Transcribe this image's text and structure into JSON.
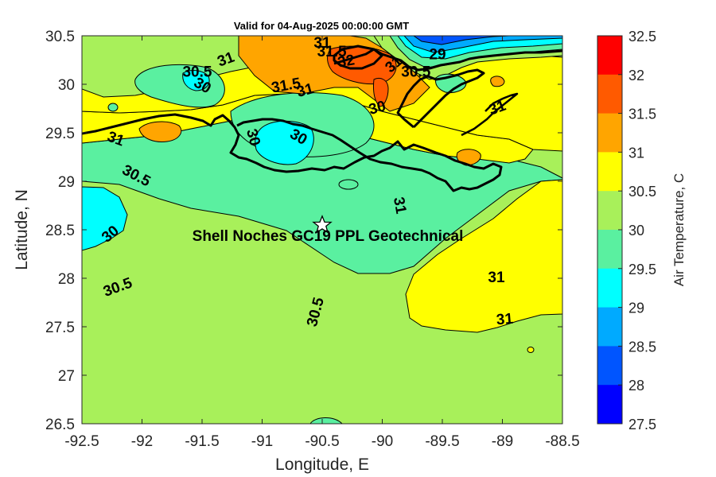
{
  "title": "Valid for 04-Aug-2025 00:00:00 GMT",
  "xlabel": "Longitude, E",
  "ylabel": "Latitude, N",
  "xlim": [
    -92.5,
    -88.5
  ],
  "ylim": [
    26.5,
    30.5
  ],
  "xticks": [
    "-92.5",
    "-92",
    "-91.5",
    "-91",
    "-90.5",
    "-90",
    "-89.5",
    "-89",
    "-88.5"
  ],
  "yticks": [
    "30.5",
    "30",
    "29.5",
    "29",
    "28.5",
    "28",
    "27.5",
    "27",
    "26.5"
  ],
  "site": {
    "label": "Shell Noches   GC19 PPL  Geotechnical",
    "lon": -90.5,
    "lat": 28.55,
    "marker": "star-icon"
  },
  "colorbar": {
    "label": "Air Temperature, C",
    "levels": [
      "32.5",
      "32",
      "31.5",
      "31",
      "30.5",
      "30",
      "29.5",
      "29",
      "28.5",
      "28",
      "27.5"
    ],
    "colors": [
      "#ff0000",
      "#ff5a00",
      "#ffa500",
      "#ffff00",
      "#a8f05a",
      "#5af0a0",
      "#00ffff",
      "#00aaff",
      "#0055ff",
      "#0000ff",
      "#0000aa"
    ]
  },
  "contour_labels": [
    {
      "text": "30.5",
      "lon": -92.05,
      "lat": 29.05,
      "angle": 28
    },
    {
      "text": "31",
      "lon": -92.22,
      "lat": 29.43,
      "angle": 20
    },
    {
      "text": "30",
      "lon": -92.26,
      "lat": 28.45,
      "angle": -40
    },
    {
      "text": "30.5",
      "lon": -92.2,
      "lat": 27.9,
      "angle": -20
    },
    {
      "text": "30.5",
      "lon": -90.55,
      "lat": 27.65,
      "angle": -75
    },
    {
      "text": "31",
      "lon": -89.86,
      "lat": 28.75,
      "angle": 80
    },
    {
      "text": "31",
      "lon": -89.05,
      "lat": 28.0,
      "angle": 0
    },
    {
      "text": "31",
      "lon": -88.98,
      "lat": 27.57,
      "angle": -5
    },
    {
      "text": "31",
      "lon": -89.04,
      "lat": 29.75,
      "angle": -20
    },
    {
      "text": "30",
      "lon": -90.04,
      "lat": 29.75,
      "angle": -15
    },
    {
      "text": "30",
      "lon": -90.7,
      "lat": 29.45,
      "angle": 30
    },
    {
      "text": "30",
      "lon": -91.08,
      "lat": 29.45,
      "angle": 75
    },
    {
      "text": "30.5",
      "lon": -91.54,
      "lat": 30.12,
      "angle": 0
    },
    {
      "text": "30",
      "lon": -91.5,
      "lat": 29.98,
      "angle": 30
    },
    {
      "text": "31",
      "lon": -91.3,
      "lat": 30.25,
      "angle": -20
    },
    {
      "text": "31.5",
      "lon": -90.8,
      "lat": 29.98,
      "angle": -10
    },
    {
      "text": "31",
      "lon": -90.64,
      "lat": 29.93,
      "angle": -15
    },
    {
      "text": "31.5",
      "lon": -90.42,
      "lat": 30.33,
      "angle": 0
    },
    {
      "text": "32",
      "lon": -90.3,
      "lat": 30.23,
      "angle": -10
    },
    {
      "text": "31",
      "lon": -90.5,
      "lat": 30.42,
      "angle": 0
    },
    {
      "text": "29",
      "lon": -89.54,
      "lat": 30.3,
      "angle": 0
    },
    {
      "text": "31",
      "lon": -89.9,
      "lat": 30.2,
      "angle": -40
    },
    {
      "text": "30.5",
      "lon": -89.72,
      "lat": 30.12,
      "angle": 0
    }
  ]
}
